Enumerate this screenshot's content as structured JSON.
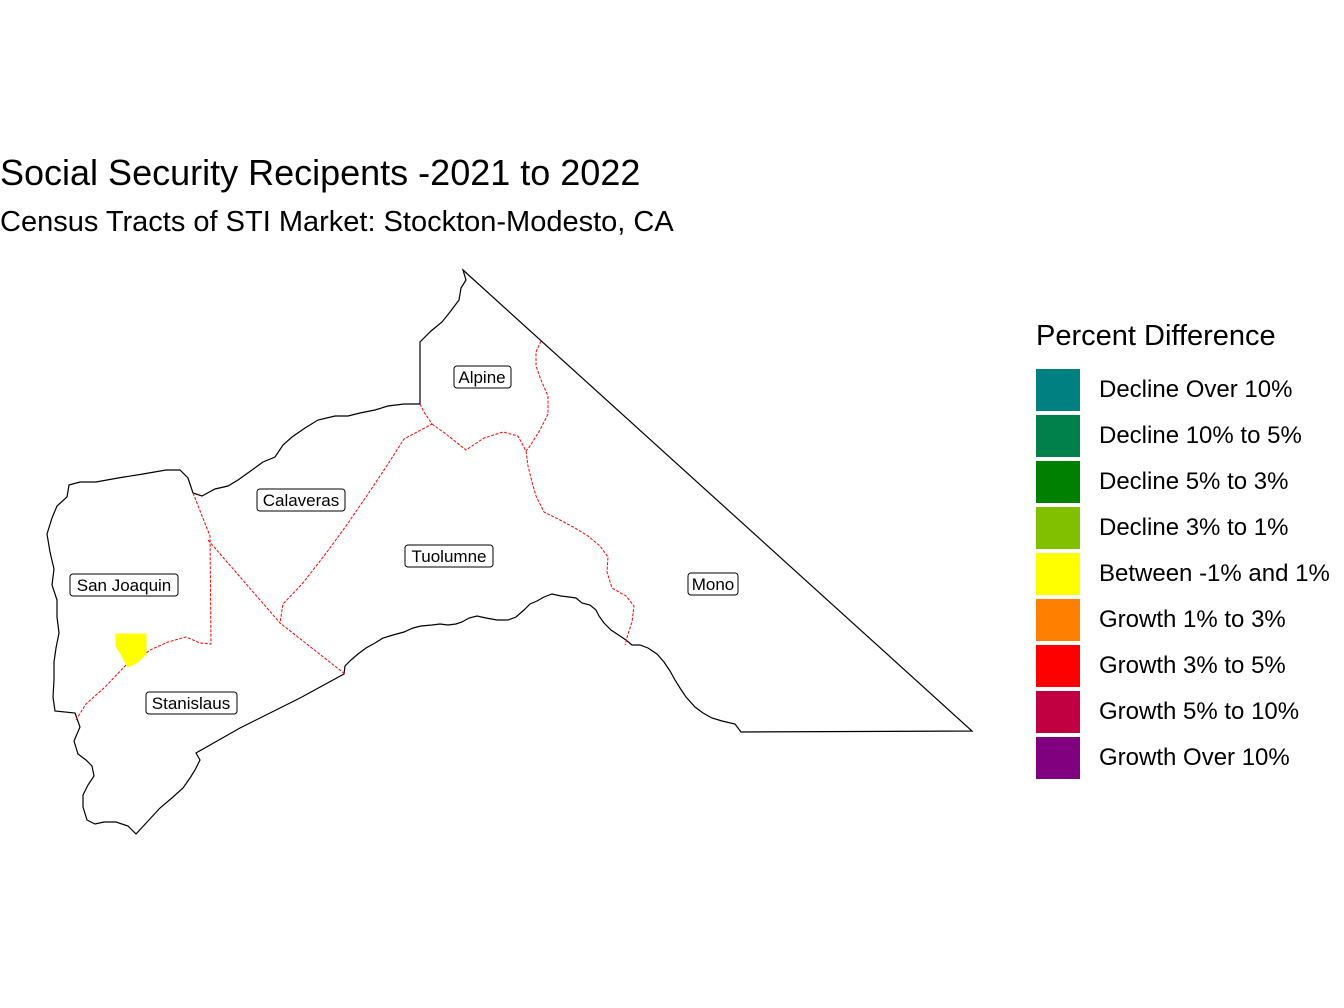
{
  "title": "Social Security Recipents -2021 to 2022",
  "subtitle": "Census Tracts of STI Market: Stockton-Modesto, CA",
  "legend": {
    "title": "Percent Difference",
    "items": [
      {
        "label": "Decline Over 10%",
        "color": "#008080"
      },
      {
        "label": "Decline 10% to 5%",
        "color": "#00804a"
      },
      {
        "label": "Decline 5% to 3%",
        "color": "#008000"
      },
      {
        "label": "Decline 3% to 1%",
        "color": "#80c000"
      },
      {
        "label": "Between -1% and 1%",
        "color": "#ffff00"
      },
      {
        "label": "Growth 1% to 3%",
        "color": "#ff8000"
      },
      {
        "label": "Growth 3% to 5%",
        "color": "#ff0000"
      },
      {
        "label": "Growth 5% to 10%",
        "color": "#c00040"
      },
      {
        "label": "Growth Over 10%",
        "color": "#800080"
      }
    ]
  },
  "counties": [
    {
      "name": "Alpine"
    },
    {
      "name": "Calaveras"
    },
    {
      "name": "Tuolumne"
    },
    {
      "name": "San Joaquin"
    },
    {
      "name": "Mono"
    },
    {
      "name": "Stanislaus"
    }
  ],
  "colors": {
    "outline": "#000000",
    "internal_border": "#ff0000",
    "highlight_tract": "#ffff00"
  }
}
